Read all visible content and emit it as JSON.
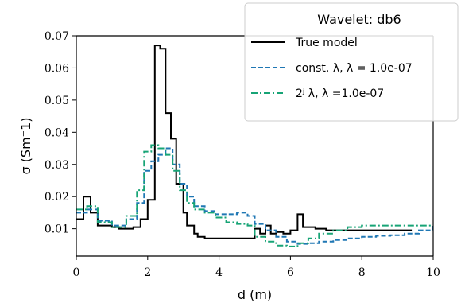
{
  "chart_data": {
    "type": "line",
    "xlabel": "d (m)",
    "ylabel": "σ (Sm⁻1)",
    "xlim": [
      0,
      10
    ],
    "ylim": [
      0.0015,
      0.07
    ],
    "xticks": [
      "0",
      "2",
      "4",
      "6",
      "8",
      "10"
    ],
    "yticks": [
      "0.01",
      "0.02",
      "0.03",
      "0.04",
      "0.05",
      "0.06",
      "0.07"
    ],
    "grid": false,
    "legend": {
      "placement": "top-right",
      "title": "Wavelet: db6",
      "entries": [
        "True model",
        "const. λ, λ = 1.0e-07",
        "2ʲ λ, λ =1.0e-07"
      ]
    },
    "series": [
      {
        "name": "True model",
        "color": "#000000",
        "dash": "solid",
        "step": true,
        "x": [
          0,
          0.2,
          0.4,
          0.6,
          1.0,
          1.2,
          1.6,
          1.8,
          2.0,
          2.2,
          2.35,
          2.5,
          2.65,
          2.8,
          3.0,
          3.1,
          3.3,
          3.4,
          3.6,
          4.0,
          5.0,
          5.15,
          5.3,
          5.45,
          5.6,
          5.8,
          6.0,
          6.2,
          6.35,
          6.55,
          6.7,
          7.0,
          8.0,
          9.0,
          9.4
        ],
        "y": [
          0.013,
          0.02,
          0.015,
          0.011,
          0.0105,
          0.01,
          0.0105,
          0.013,
          0.019,
          0.067,
          0.066,
          0.046,
          0.038,
          0.024,
          0.015,
          0.011,
          0.0085,
          0.0075,
          0.007,
          0.007,
          0.01,
          0.0085,
          0.011,
          0.0085,
          0.009,
          0.0085,
          0.0095,
          0.0145,
          0.0105,
          0.0105,
          0.01,
          0.0095,
          0.0095,
          0.0095,
          0.0095
        ]
      },
      {
        "name": "const. λ, λ = 1.0e-07",
        "color": "#1f77b4",
        "dash": "dashed",
        "step": true,
        "x": [
          0,
          0.3,
          0.6,
          1.0,
          1.4,
          1.7,
          1.9,
          2.1,
          2.3,
          2.5,
          2.7,
          2.9,
          3.1,
          3.3,
          3.6,
          3.9,
          4.2,
          4.5,
          4.8,
          5.0,
          5.3,
          5.6,
          5.9,
          6.2,
          6.5,
          6.8,
          7.2,
          7.6,
          8.0,
          8.4,
          8.8,
          9.2,
          9.6,
          10.0
        ],
        "y": [
          0.015,
          0.016,
          0.0125,
          0.011,
          0.013,
          0.018,
          0.028,
          0.031,
          0.033,
          0.035,
          0.03,
          0.024,
          0.02,
          0.017,
          0.0155,
          0.0145,
          0.0145,
          0.015,
          0.014,
          0.0115,
          0.0095,
          0.0075,
          0.006,
          0.0053,
          0.0055,
          0.006,
          0.0065,
          0.007,
          0.0075,
          0.0078,
          0.008,
          0.0085,
          0.0095,
          0.011
        ]
      },
      {
        "name": "2ʲ λ, λ =1.0e-07",
        "color": "#17a476",
        "dash": "dashdot",
        "step": true,
        "x": [
          0,
          0.3,
          0.6,
          1.0,
          1.4,
          1.7,
          1.9,
          2.1,
          2.3,
          2.5,
          2.7,
          2.9,
          3.1,
          3.3,
          3.6,
          3.9,
          4.2,
          4.5,
          4.8,
          5.0,
          5.3,
          5.6,
          5.9,
          6.2,
          6.5,
          6.8,
          7.2,
          7.6,
          8.0,
          8.4,
          8.8,
          9.2,
          9.6,
          10.0
        ],
        "y": [
          0.016,
          0.017,
          0.012,
          0.0105,
          0.014,
          0.022,
          0.034,
          0.036,
          0.035,
          0.033,
          0.028,
          0.022,
          0.018,
          0.016,
          0.015,
          0.0135,
          0.012,
          0.0115,
          0.011,
          0.0075,
          0.006,
          0.0048,
          0.0045,
          0.0055,
          0.007,
          0.0085,
          0.0095,
          0.0105,
          0.011,
          0.011,
          0.011,
          0.011,
          0.011,
          0.011
        ]
      }
    ]
  }
}
